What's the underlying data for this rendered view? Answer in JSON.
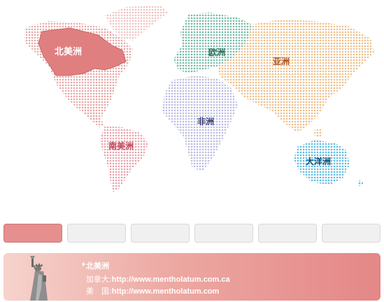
{
  "map": {
    "regions": [
      {
        "id": "north-america",
        "label": "北美洲",
        "color": "#e07f80",
        "active": true
      },
      {
        "id": "south-america",
        "label": "南美洲",
        "color": "#e7a3ae"
      },
      {
        "id": "europe",
        "label": "欧洲",
        "color": "#77bba8"
      },
      {
        "id": "africa",
        "label": "非洲",
        "color": "#bcbde0"
      },
      {
        "id": "asia",
        "label": "亚洲",
        "color": "#eec08b"
      },
      {
        "id": "oceania",
        "label": "大洋洲",
        "color": "#5fbde0"
      }
    ]
  },
  "tabs": [
    {
      "label": "",
      "active": true
    },
    {
      "label": ""
    },
    {
      "label": ""
    },
    {
      "label": ""
    },
    {
      "label": ""
    },
    {
      "label": ""
    }
  ],
  "panel": {
    "title": "北美洲",
    "rows": [
      {
        "label": "加拿大:",
        "url": "http://www.mentholatum.com.ca"
      },
      {
        "label": "美　国:",
        "url": "http://www.mentholatum.com"
      }
    ]
  },
  "colors": {
    "tab_active": "#e58f8f",
    "panel_start": "#f6d3cc",
    "panel_end": "#e48787"
  }
}
